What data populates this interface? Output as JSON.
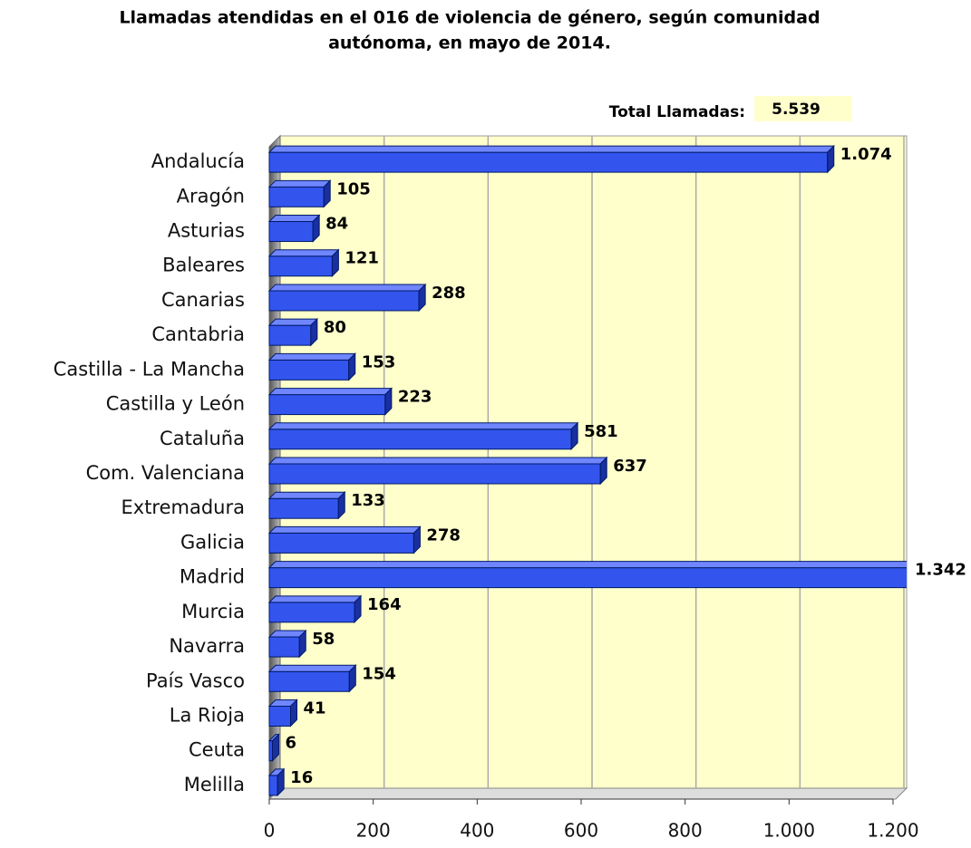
{
  "chart_data": {
    "type": "bar",
    "orientation": "horizontal",
    "title": "Llamadas atendidas en el 016 de violencia de género, según comunidad",
    "subtitle": "autónoma, en mayo de 2014.",
    "annotation": {
      "label": "Total Llamadas:",
      "value": "5.539"
    },
    "categories": [
      "Andalucía",
      "Aragón",
      "Asturias",
      "Baleares",
      "Canarias",
      "Cantabria",
      "Castilla - La Mancha",
      "Castilla y León",
      "Cataluña",
      "Com. Valenciana",
      "Extremadura",
      "Galicia",
      "Madrid",
      "Murcia",
      "Navarra",
      "País Vasco",
      "La Rioja",
      "Ceuta",
      "Melilla"
    ],
    "values": [
      1074,
      105,
      84,
      121,
      288,
      80,
      153,
      223,
      581,
      637,
      133,
      278,
      1342,
      164,
      58,
      154,
      41,
      6,
      16
    ],
    "value_labels": [
      "1.074",
      "105",
      "84",
      "121",
      "288",
      "80",
      "153",
      "223",
      "581",
      "637",
      "133",
      "278",
      "1.342",
      "164",
      "58",
      "154",
      "41",
      "6",
      "16"
    ],
    "color": "#3355ee",
    "xlim": [
      0,
      1200
    ],
    "xticks": [
      0,
      200,
      400,
      600,
      800,
      {
        "value": 1000,
        "label": "1.000"
      },
      {
        "value": 1200,
        "label": "1.200"
      }
    ],
    "grid": true
  }
}
